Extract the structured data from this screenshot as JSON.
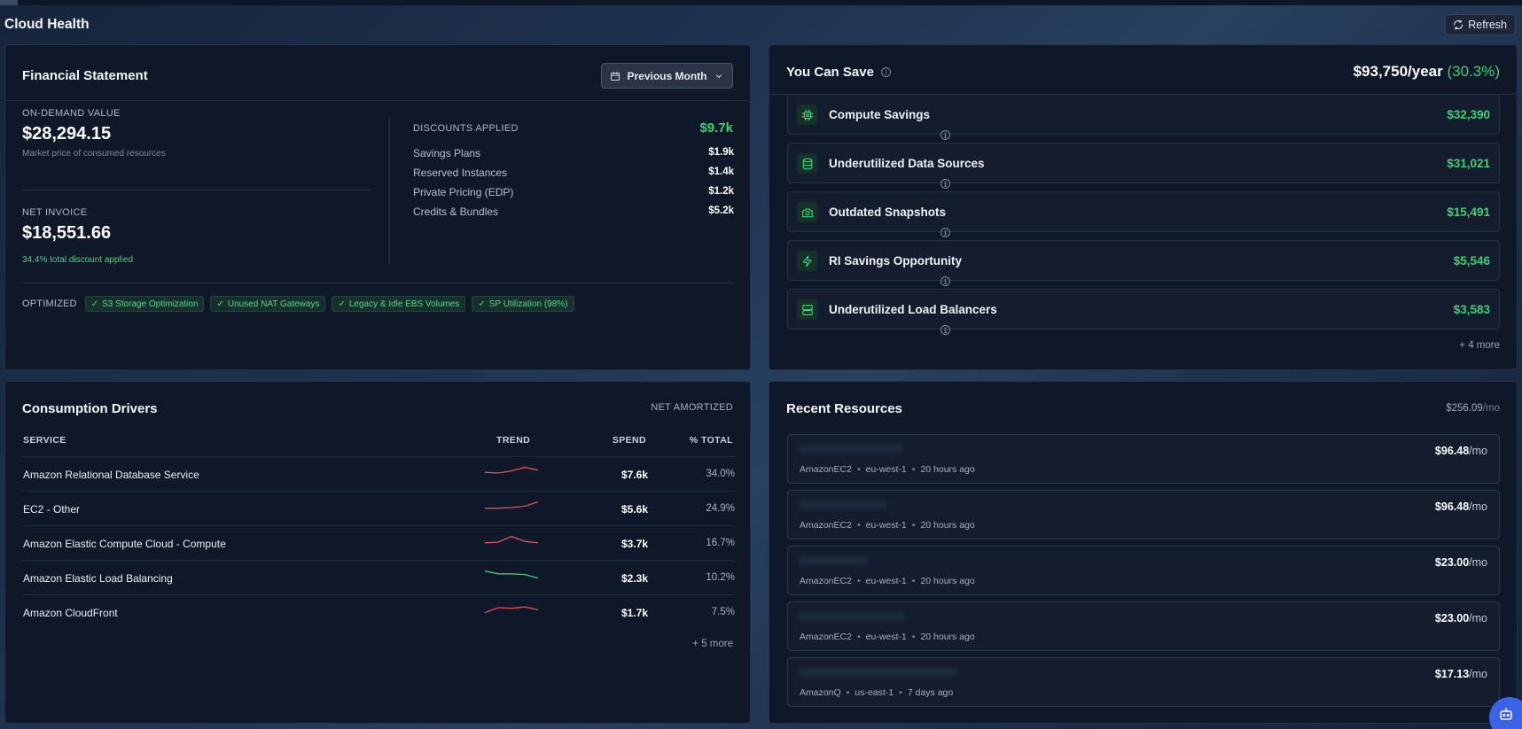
{
  "page": {
    "title": "Cloud Health",
    "refresh_label": "Refresh"
  },
  "financial": {
    "title": "Financial Statement",
    "period_label": "Previous Month",
    "on_demand_label": "ON-DEMAND VALUE",
    "on_demand_value": "$28,294.15",
    "on_demand_note": "Market price of consumed resources",
    "net_invoice_label": "NET INVOICE",
    "net_invoice_value": "$18,551.66",
    "net_invoice_note": "34.4% total discount applied",
    "discounts_label": "DISCOUNTS APPLIED",
    "discounts_total": "$9.7k",
    "discounts": [
      {
        "name": "Savings Plans",
        "value": "$1.9k"
      },
      {
        "name": "Reserved Instances",
        "value": "$1.4k"
      },
      {
        "name": "Private Pricing (EDP)",
        "value": "$1.2k"
      },
      {
        "name": "Credits & Bundles",
        "value": "$5.2k"
      }
    ],
    "optimized_label": "OPTIMIZED",
    "optimized_chips": [
      "S3 Storage Optimization",
      "Unused NAT Gateways",
      "Legacy & Idle EBS Volumes",
      "SP Utilization (98%)"
    ]
  },
  "savings": {
    "title": "You Can Save",
    "total": "$93,750/year",
    "percent": "(30.3%)",
    "items": [
      {
        "name": "Compute Savings",
        "amount": "$32,390",
        "icon": "cpu-icon"
      },
      {
        "name": "Underutilized Data Sources",
        "amount": "$31,021",
        "icon": "database-icon"
      },
      {
        "name": "Outdated Snapshots",
        "amount": "$15,491",
        "icon": "camera-icon"
      },
      {
        "name": "RI Savings Opportunity",
        "amount": "$5,546",
        "icon": "lightning-icon"
      },
      {
        "name": "Underutilized Load Balancers",
        "amount": "$3,583",
        "icon": "server-icon"
      }
    ],
    "more": "+ 4 more"
  },
  "consumption": {
    "title": "Consumption Drivers",
    "mode": "NET AMORTIZED",
    "headers": {
      "service": "SERVICE",
      "trend": "TREND",
      "spend": "SPEND",
      "pct": "% TOTAL"
    },
    "rows": [
      {
        "service": "Amazon Relational Database Service",
        "spend": "$7.6k",
        "pct": "34.0%",
        "trend": [
          0.45,
          0.5,
          0.35,
          0.1,
          0.3
        ],
        "trend_color": "#e0505a"
      },
      {
        "service": "EC2 - Other",
        "spend": "$5.6k",
        "pct": "24.9%",
        "trend": [
          0.55,
          0.55,
          0.5,
          0.4,
          0.1
        ],
        "trend_color": "#e0505a"
      },
      {
        "service": "Amazon Elastic Compute Cloud - Compute",
        "spend": "$3.7k",
        "pct": "16.7%",
        "trend": [
          0.55,
          0.5,
          0.1,
          0.45,
          0.55
        ],
        "trend_color": "#e0505a"
      },
      {
        "service": "Amazon Elastic Load Balancing",
        "spend": "$2.3k",
        "pct": "10.2%",
        "trend": [
          0.1,
          0.3,
          0.3,
          0.35,
          0.6
        ],
        "trend_color": "#3fcf74"
      },
      {
        "service": "Amazon CloudFront",
        "spend": "$1.7k",
        "pct": "7.5%",
        "trend": [
          0.6,
          0.25,
          0.3,
          0.2,
          0.4
        ],
        "trend_color": "#e0505a"
      }
    ],
    "more": "+ 5 more"
  },
  "recent": {
    "title": "Recent Resources",
    "total": "$256.09",
    "total_unit": "/mo",
    "items": [
      {
        "service": "AmazonEC2",
        "region": "eu-west-1",
        "age": "20 hours ago",
        "cost": "$96.48",
        "unit": "/mo"
      },
      {
        "service": "AmazonEC2",
        "region": "eu-west-1",
        "age": "20 hours ago",
        "cost": "$96.48",
        "unit": "/mo"
      },
      {
        "service": "AmazonEC2",
        "region": "eu-west-1",
        "age": "20 hours ago",
        "cost": "$23.00",
        "unit": "/mo"
      },
      {
        "service": "AmazonEC2",
        "region": "eu-west-1",
        "age": "20 hours ago",
        "cost": "$23.00",
        "unit": "/mo"
      },
      {
        "service": "AmazonQ",
        "region": "us-east-1",
        "age": "7 days ago",
        "cost": "$17.13",
        "unit": "/mo"
      }
    ]
  },
  "colors": {
    "accent_green": "#3fcf74",
    "trend_red": "#e0505a",
    "bot_blue": "#3b63e6"
  }
}
